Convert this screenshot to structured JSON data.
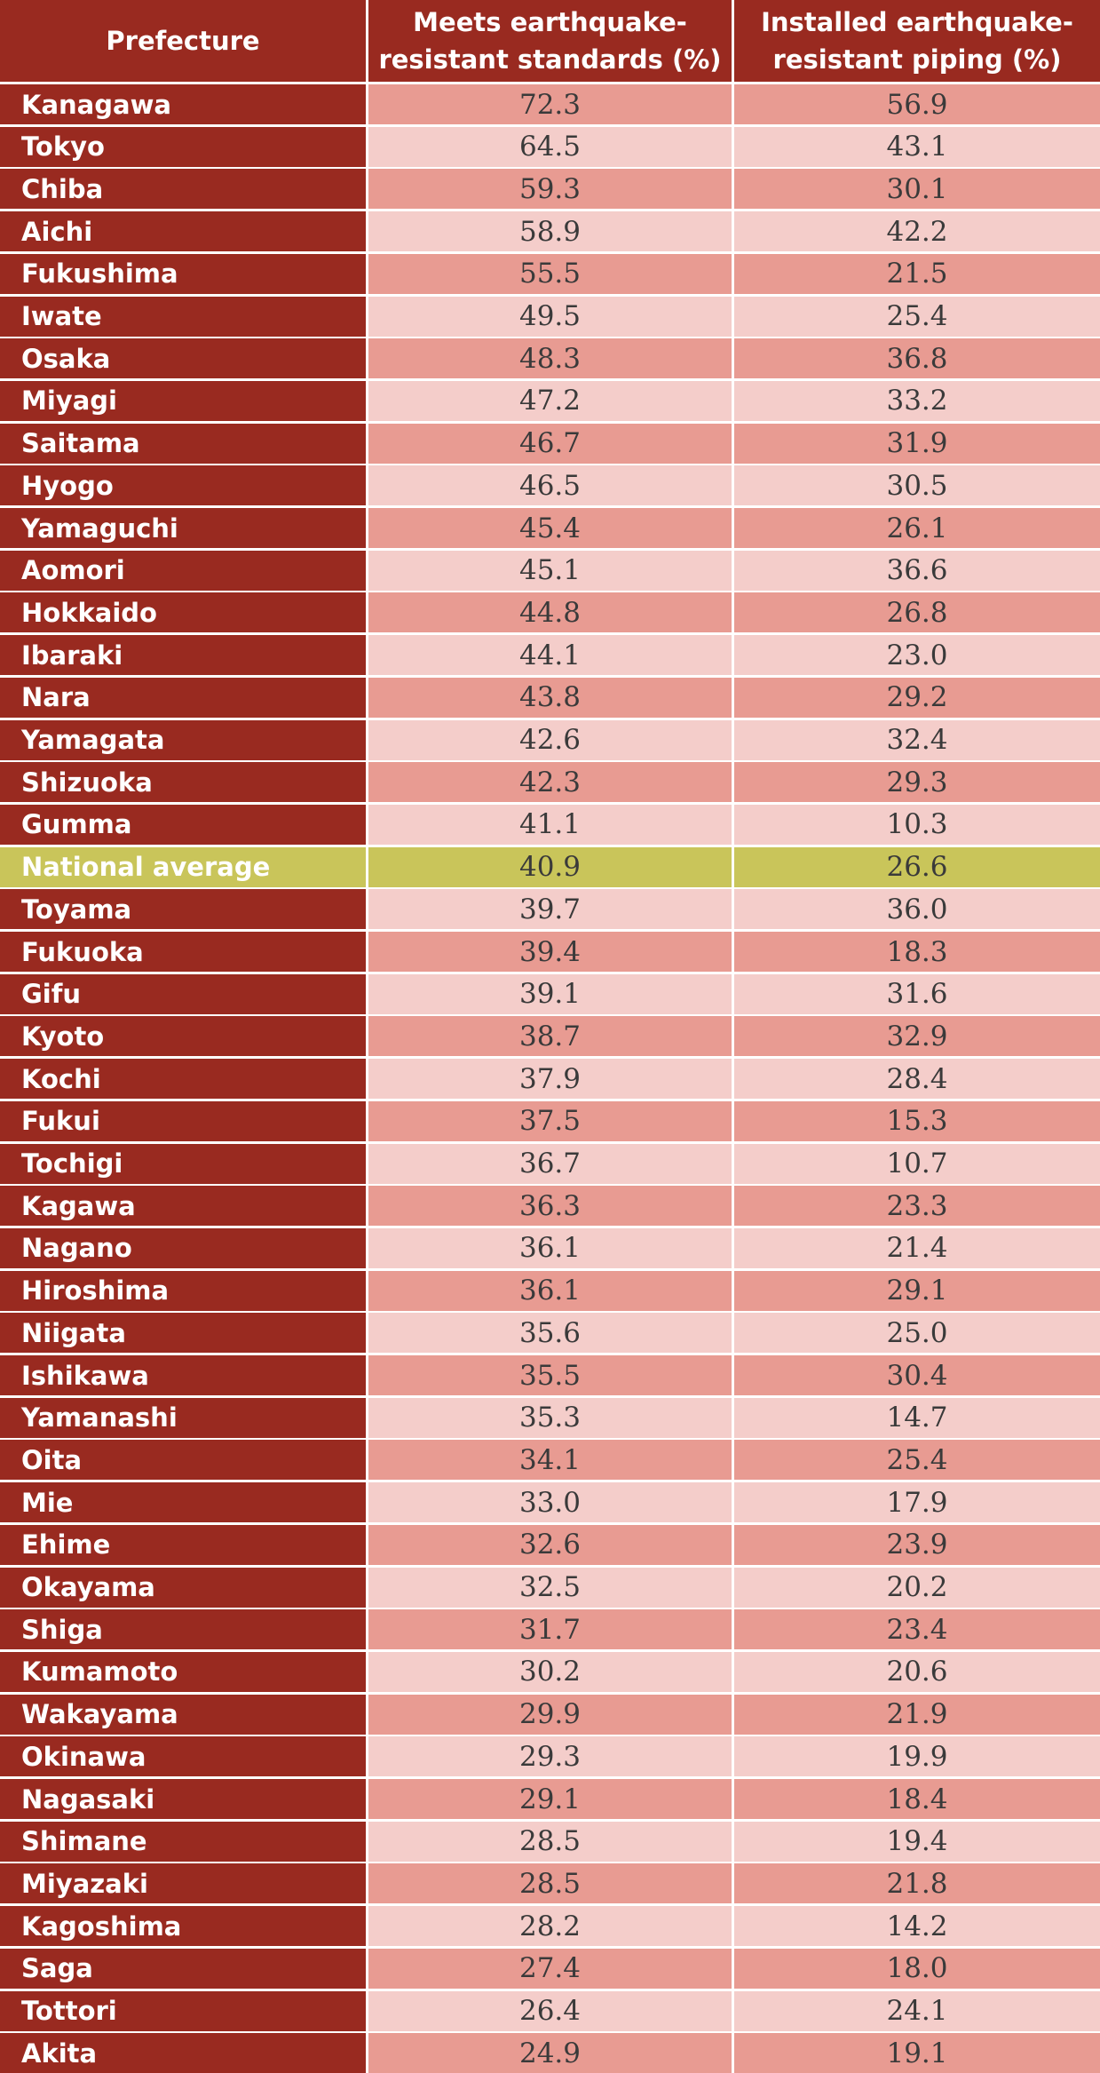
{
  "chart_data": {
    "type": "table",
    "columns": [
      "Prefecture",
      "Meets earthquake-resistant standards (%)",
      "Installed earthquake-resistant piping (%)"
    ],
    "header_lines": [
      [
        "Prefecture"
      ],
      [
        "Meets earthquake-",
        "resistant standards (%)"
      ],
      [
        "Installed earthquake-",
        "resistant piping (%)"
      ]
    ],
    "rows": [
      {
        "prefecture": "Kanagawa",
        "standards": "72.3",
        "piping": "56.9"
      },
      {
        "prefecture": "Tokyo",
        "standards": "64.5",
        "piping": "43.1"
      },
      {
        "prefecture": "Chiba",
        "standards": "59.3",
        "piping": "30.1"
      },
      {
        "prefecture": "Aichi",
        "standards": "58.9",
        "piping": "42.2"
      },
      {
        "prefecture": "Fukushima",
        "standards": "55.5",
        "piping": "21.5"
      },
      {
        "prefecture": "Iwate",
        "standards": "49.5",
        "piping": "25.4"
      },
      {
        "prefecture": "Osaka",
        "standards": "48.3",
        "piping": "36.8"
      },
      {
        "prefecture": "Miyagi",
        "standards": "47.2",
        "piping": "33.2"
      },
      {
        "prefecture": "Saitama",
        "standards": "46.7",
        "piping": "31.9"
      },
      {
        "prefecture": "Hyogo",
        "standards": "46.5",
        "piping": "30.5"
      },
      {
        "prefecture": "Yamaguchi",
        "standards": "45.4",
        "piping": "26.1"
      },
      {
        "prefecture": "Aomori",
        "standards": "45.1",
        "piping": "36.6"
      },
      {
        "prefecture": "Hokkaido",
        "standards": "44.8",
        "piping": "26.8"
      },
      {
        "prefecture": "Ibaraki",
        "standards": "44.1",
        "piping": "23.0"
      },
      {
        "prefecture": "Nara",
        "standards": "43.8",
        "piping": "29.2"
      },
      {
        "prefecture": "Yamagata",
        "standards": "42.6",
        "piping": "32.4"
      },
      {
        "prefecture": "Shizuoka",
        "standards": "42.3",
        "piping": "29.3"
      },
      {
        "prefecture": "Gumma",
        "standards": "41.1",
        "piping": "10.3"
      },
      {
        "prefecture": "National average",
        "standards": "40.9",
        "piping": "26.6",
        "highlight": true
      },
      {
        "prefecture": "Toyama",
        "standards": "39.7",
        "piping": "36.0"
      },
      {
        "prefecture": "Fukuoka",
        "standards": "39.4",
        "piping": "18.3"
      },
      {
        "prefecture": "Gifu",
        "standards": "39.1",
        "piping": "31.6"
      },
      {
        "prefecture": "Kyoto",
        "standards": "38.7",
        "piping": "32.9"
      },
      {
        "prefecture": "Kochi",
        "standards": "37.9",
        "piping": "28.4"
      },
      {
        "prefecture": "Fukui",
        "standards": "37.5",
        "piping": "15.3"
      },
      {
        "prefecture": "Tochigi",
        "standards": "36.7",
        "piping": "10.7"
      },
      {
        "prefecture": "Kagawa",
        "standards": "36.3",
        "piping": "23.3"
      },
      {
        "prefecture": "Nagano",
        "standards": "36.1",
        "piping": "21.4"
      },
      {
        "prefecture": "Hiroshima",
        "standards": "36.1",
        "piping": "29.1"
      },
      {
        "prefecture": "Niigata",
        "standards": "35.6",
        "piping": "25.0"
      },
      {
        "prefecture": "Ishikawa",
        "standards": "35.5",
        "piping": "30.4"
      },
      {
        "prefecture": "Yamanashi",
        "standards": "35.3",
        "piping": "14.7"
      },
      {
        "prefecture": "Oita",
        "standards": "34.1",
        "piping": "25.4"
      },
      {
        "prefecture": "Mie",
        "standards": "33.0",
        "piping": "17.9"
      },
      {
        "prefecture": "Ehime",
        "standards": "32.6",
        "piping": "23.9"
      },
      {
        "prefecture": "Okayama",
        "standards": "32.5",
        "piping": "20.2"
      },
      {
        "prefecture": "Shiga",
        "standards": "31.7",
        "piping": "23.4"
      },
      {
        "prefecture": "Kumamoto",
        "standards": "30.2",
        "piping": "20.6"
      },
      {
        "prefecture": "Wakayama",
        "standards": "29.9",
        "piping": "21.9"
      },
      {
        "prefecture": "Okinawa",
        "standards": "29.3",
        "piping": "19.9"
      },
      {
        "prefecture": "Nagasaki",
        "standards": "29.1",
        "piping": "18.4"
      },
      {
        "prefecture": "Shimane",
        "standards": "28.5",
        "piping": "19.4"
      },
      {
        "prefecture": "Miyazaki",
        "standards": "28.5",
        "piping": "21.8"
      },
      {
        "prefecture": "Kagoshima",
        "standards": "28.2",
        "piping": "14.2"
      },
      {
        "prefecture": "Saga",
        "standards": "27.4",
        "piping": "18.0"
      },
      {
        "prefecture": "Tottori",
        "standards": "26.4",
        "piping": "24.1"
      },
      {
        "prefecture": "Akita",
        "standards": "24.9",
        "piping": "19.1"
      }
    ],
    "colors": {
      "header_bg": "#992a20",
      "name_bg": "#992a20",
      "row_dark": "#e89b92",
      "row_light": "#f4cdca",
      "highlight": "#c9c55a"
    }
  }
}
